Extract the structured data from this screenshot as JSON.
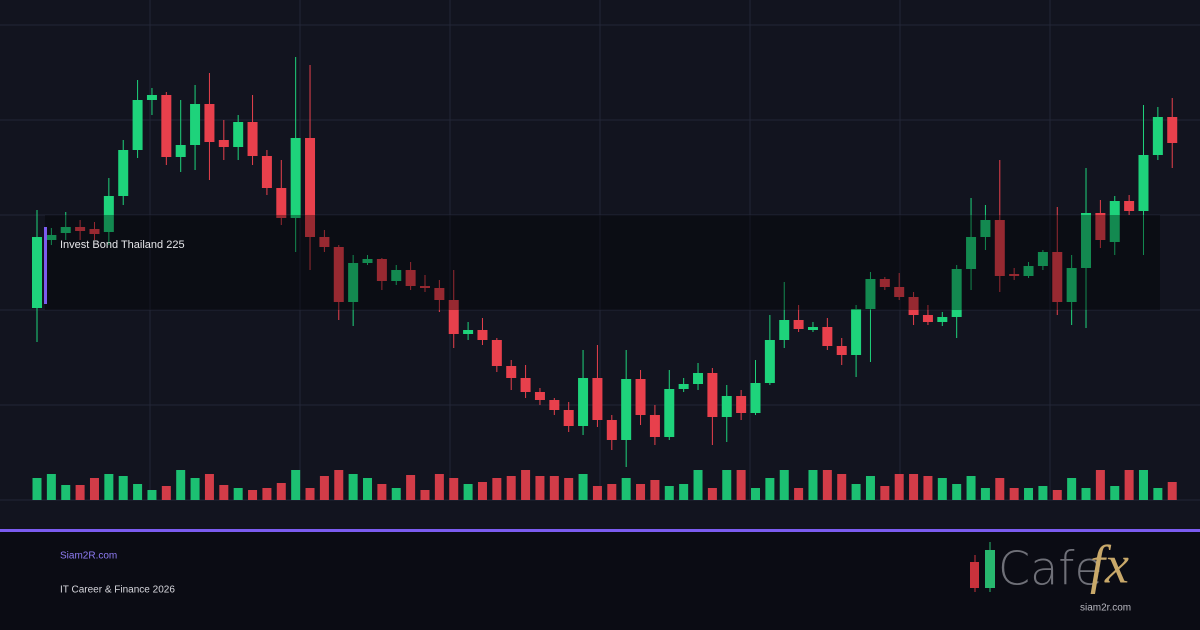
{
  "chart_data": {
    "type": "candlestick",
    "annotation": "Invest Bond Thailand 225",
    "up_color": "#1ed37b",
    "down_color": "#e8404c",
    "ylim": [
      0,
      475
    ],
    "yticks": [
      0,
      95,
      190,
      285,
      380,
      475
    ],
    "grid": true,
    "open": [
      192,
      260,
      267,
      273,
      271,
      268,
      304,
      350,
      400,
      405,
      343,
      355,
      396,
      360,
      353,
      378,
      344,
      312,
      282,
      362,
      263,
      253,
      198,
      237,
      241,
      219,
      230,
      214,
      212,
      200,
      166,
      170,
      160,
      134,
      122,
      108,
      100,
      90,
      74,
      122,
      80,
      60,
      121,
      85,
      63,
      111,
      116,
      127,
      83,
      104,
      87,
      117,
      160,
      180,
      170,
      173,
      154,
      145,
      191,
      221,
      213,
      203,
      185,
      178,
      183,
      231,
      263,
      280,
      226,
      224,
      234,
      248,
      198,
      232,
      287,
      258,
      299,
      289,
      345,
      383
    ],
    "high": [
      290,
      272,
      288,
      280,
      278,
      322,
      360,
      420,
      412,
      408,
      400,
      415,
      427,
      380,
      385,
      405,
      350,
      340,
      443,
      435,
      270,
      255,
      245,
      245,
      242,
      235,
      238,
      225,
      220,
      230,
      178,
      182,
      162,
      140,
      135,
      112,
      102,
      98,
      150,
      155,
      85,
      150,
      130,
      95,
      130,
      122,
      137,
      132,
      115,
      110,
      140,
      185,
      218,
      195,
      178,
      182,
      162,
      195,
      228,
      223,
      227,
      208,
      195,
      188,
      235,
      302,
      295,
      340,
      232,
      238,
      250,
      293,
      245,
      332,
      300,
      304,
      305,
      395,
      393,
      402
    ],
    "low": [
      158,
      255,
      260,
      260,
      260,
      255,
      295,
      342,
      385,
      335,
      328,
      330,
      320,
      340,
      340,
      335,
      305,
      275,
      248,
      230,
      248,
      180,
      174,
      235,
      210,
      215,
      210,
      208,
      188,
      152,
      160,
      155,
      128,
      110,
      102,
      95,
      85,
      68,
      65,
      73,
      50,
      33,
      75,
      55,
      60,
      108,
      110,
      55,
      58,
      80,
      85,
      115,
      152,
      168,
      168,
      150,
      135,
      123,
      138,
      210,
      200,
      175,
      175,
      174,
      162,
      210,
      250,
      208,
      220,
      222,
      230,
      185,
      175,
      172,
      252,
      245,
      285,
      245,
      340,
      332
    ],
    "close": [
      263,
      265,
      273,
      269,
      266,
      304,
      350,
      400,
      405,
      343,
      355,
      396,
      358,
      353,
      378,
      344,
      312,
      282,
      362,
      263,
      253,
      198,
      237,
      241,
      219,
      230,
      214,
      212,
      200,
      166,
      170,
      160,
      134,
      122,
      108,
      100,
      90,
      74,
      122,
      80,
      60,
      121,
      85,
      63,
      111,
      116,
      127,
      83,
      104,
      87,
      117,
      160,
      180,
      171,
      173,
      154,
      145,
      191,
      221,
      213,
      203,
      185,
      178,
      183,
      231,
      263,
      280,
      224,
      224,
      234,
      248,
      198,
      232,
      287,
      260,
      299,
      289,
      345,
      383,
      357
    ],
    "volume": [
      22,
      26,
      15,
      15,
      22,
      26,
      24,
      16,
      10,
      14,
      30,
      22,
      26,
      15,
      12,
      10,
      12,
      17,
      30,
      12,
      24,
      30,
      26,
      22,
      16,
      12,
      25,
      10,
      26,
      22,
      16,
      18,
      22,
      24,
      30,
      24,
      24,
      22,
      26,
      14,
      16,
      22,
      16,
      20,
      14,
      16,
      30,
      12,
      30,
      30,
      12,
      22,
      30,
      12,
      30,
      30,
      26,
      16,
      24,
      14,
      26,
      26,
      24,
      22,
      16,
      24,
      12,
      22,
      12,
      12,
      14,
      10,
      22,
      12,
      30,
      14,
      30,
      30,
      12,
      18
    ]
  },
  "footer": {
    "site": "Siam2R.com",
    "tagline": "IT Career & Finance 2026",
    "logo": {
      "name": "Cafe",
      "suffix": "fx",
      "url": "siam2r.com"
    }
  }
}
